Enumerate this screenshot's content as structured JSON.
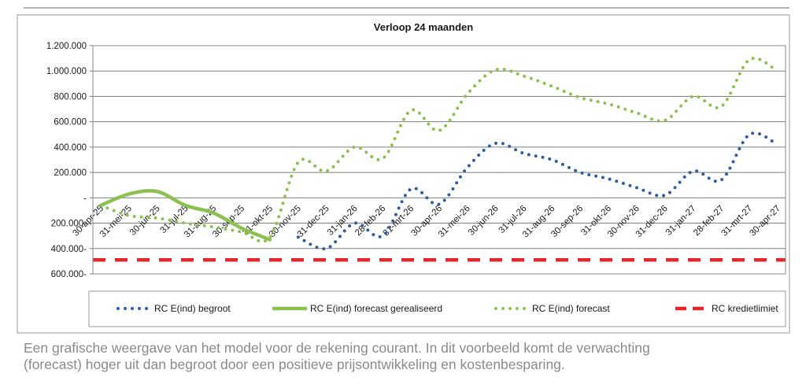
{
  "chart_data": {
    "type": "line",
    "title": "Verloop 24 maanden",
    "xlabel": "",
    "ylabel": "",
    "categories": [
      "30-apr-25",
      "31-mei-25",
      "30-jun-25",
      "31-jul-25",
      "31-aug-25",
      "30-sep-25",
      "31-okt-25",
      "30-nov-25",
      "31-dec-25",
      "31-jan-26",
      "28-feb-26",
      "31-mrt-26",
      "30-apr-26",
      "31-mei-26",
      "30-jun-26",
      "31-jul-26",
      "31-aug-26",
      "30-sep-26",
      "31-okt-26",
      "30-nov-26",
      "31-dec-26",
      "31-jan-27",
      "28-feb-27",
      "31-mrt-27",
      "30-apr-27"
    ],
    "ylim": [
      -600000,
      1200000
    ],
    "yticks": [
      1200000,
      1000000,
      800000,
      600000,
      400000,
      200000,
      0,
      -200000,
      -400000,
      -600000
    ],
    "ytick_labels": [
      "1.200.000",
      "1.000.000",
      "800.000",
      "600.000",
      "400.000",
      "200.000",
      "-",
      "200.000-",
      "400.000-",
      "600.000-"
    ],
    "grid": true,
    "legend_position": "bottom",
    "series": [
      {
        "name": "RC E(ind) begroot",
        "style": "dotted",
        "color": "#2e5e9e",
        "values": [
          null,
          null,
          null,
          null,
          null,
          null,
          null,
          -310000,
          -400000,
          -200000,
          -300000,
          70000,
          -50000,
          240000,
          430000,
          350000,
          300000,
          200000,
          150000,
          80000,
          20000,
          210000,
          140000,
          500000,
          420000
        ]
      },
      {
        "name": "RC E(ind) forecast gerealiseerd",
        "style": "solid",
        "color": "#8cc152",
        "values": [
          -60000,
          30000,
          50000,
          -60000,
          -120000,
          -240000,
          -330000,
          null,
          null,
          null,
          null,
          null,
          null,
          null,
          null,
          null,
          null,
          null,
          null,
          null,
          null,
          null,
          null,
          null,
          null
        ]
      },
      {
        "name": "RC E(ind) forecast",
        "style": "dotted",
        "color": "#8cc152",
        "values": [
          -60000,
          -140000,
          -160000,
          -200000,
          -230000,
          -270000,
          -310000,
          280000,
          210000,
          400000,
          310000,
          690000,
          530000,
          820000,
          1010000,
          960000,
          880000,
          790000,
          740000,
          670000,
          610000,
          800000,
          720000,
          1090000,
          1000000
        ]
      },
      {
        "name": "RC kredietlimiet",
        "style": "dashed",
        "color": "#e3262b",
        "values": [
          -490000,
          -490000,
          -490000,
          -490000,
          -490000,
          -490000,
          -490000,
          -490000,
          -490000,
          -490000,
          -490000,
          -490000,
          -490000,
          -490000,
          -490000,
          -490000,
          -490000,
          -490000,
          -490000,
          -490000,
          -490000,
          -490000,
          -490000,
          -490000,
          -490000
        ]
      }
    ]
  },
  "caption": [
    "Een grafische weergave van het model voor de rekening courant. In dit voorbeeld komt de verwachting",
    "(forecast) hoger uit dan begroot door een positieve prijsontwikkeling en kostenbesparing."
  ],
  "colors": {
    "grid": "#7f7f7f",
    "frame": "#9a9a9a",
    "rule": "#b5b5b5",
    "caption": "#8a8a8a"
  }
}
